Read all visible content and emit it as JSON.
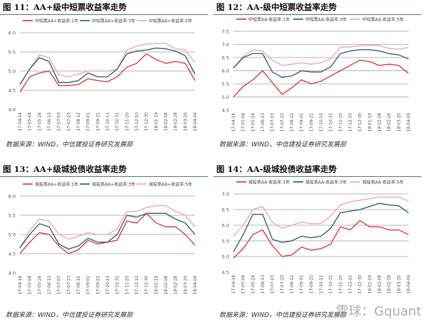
{
  "colors": {
    "y1": "#d9373a",
    "y3": "#2f5f6e",
    "y5": "#f1a5ad",
    "grid": "#a0a0a0",
    "rule": "#4a7b8c"
  },
  "source_text": "数据来源：WIND，中信建投证券研究发展部",
  "watermark": "雪球：Gquant",
  "chart_data": [
    {
      "type": "line",
      "title": "图 11：AA+级中短票收益率走势",
      "ylim": [
        4.0,
        6.0
      ],
      "yticks": [
        "4.0",
        "4.5",
        "5.0",
        "5.5",
        "6.0"
      ],
      "grid": true,
      "legend": "top",
      "x": [
        "17-04-14",
        "17-05-04",
        "17-05-24",
        "17-06-13",
        "17-07-03",
        "17-07-23",
        "17-08-12",
        "17-09-01",
        "17-09-21",
        "17-10-11",
        "17-10-31",
        "17-11-20",
        "17-12-10",
        "17-12-30",
        "18-01-19",
        "18-02-08",
        "18-02-28",
        "18-03-20",
        "18-04-09"
      ],
      "series": [
        {
          "name": "中短票AA+收益率:1年",
          "values": [
            4.45,
            4.85,
            4.95,
            5.0,
            4.62,
            4.62,
            4.65,
            4.8,
            4.75,
            4.72,
            4.85,
            5.1,
            5.2,
            5.45,
            5.3,
            5.2,
            5.25,
            5.2,
            4.75
          ]
        },
        {
          "name": "中短票AA+收益率:3年",
          "values": [
            4.65,
            5.05,
            5.35,
            5.25,
            4.7,
            4.7,
            4.75,
            4.95,
            4.85,
            4.85,
            5.05,
            5.45,
            5.52,
            5.55,
            5.6,
            5.58,
            5.52,
            5.4,
            4.92
          ]
        },
        {
          "name": "中短票AA+收益率:5年",
          "values": [
            4.65,
            5.05,
            5.42,
            5.35,
            4.9,
            4.85,
            4.92,
            5.0,
            5.0,
            5.0,
            5.05,
            5.55,
            5.65,
            5.7,
            5.72,
            5.72,
            5.58,
            5.55,
            5.22
          ]
        }
      ]
    },
    {
      "type": "line",
      "title": "图 12：AA-级中短票收益率走势",
      "ylim": [
        4.5,
        7.5
      ],
      "yticks": [
        "4.5",
        "5.0",
        "5.5",
        "6.0",
        "6.5",
        "7.0",
        "7.5"
      ],
      "grid": true,
      "legend": "top",
      "x": [
        "17-04-14",
        "17-05-04",
        "17-05-24",
        "17-06-13",
        "17-07-03",
        "17-07-23",
        "17-08-12",
        "17-09-01",
        "17-09-21",
        "17-10-11",
        "17-10-31",
        "17-11-20",
        "17-12-10",
        "17-12-30",
        "18-01-19",
        "18-02-08",
        "18-02-28",
        "18-03-20",
        "18-04-09"
      ],
      "series": [
        {
          "name": "中短票AA-收益率:1年",
          "values": [
            5.0,
            5.4,
            5.65,
            6.0,
            5.55,
            5.1,
            5.35,
            5.65,
            5.5,
            5.6,
            5.8,
            6.0,
            6.2,
            6.4,
            6.35,
            6.2,
            6.25,
            6.2,
            5.9
          ]
        },
        {
          "name": "中短票AA-收益率:3年",
          "values": [
            6.1,
            6.5,
            6.65,
            6.65,
            5.95,
            5.75,
            5.8,
            6.0,
            5.95,
            5.95,
            6.15,
            6.65,
            6.75,
            6.8,
            6.8,
            6.75,
            6.65,
            6.6,
            6.45
          ]
        },
        {
          "name": "中短票AA-收益率:5年",
          "values": [
            6.1,
            6.55,
            6.8,
            6.75,
            6.4,
            6.2,
            6.25,
            6.3,
            6.25,
            6.3,
            6.45,
            6.9,
            6.9,
            6.95,
            6.97,
            6.95,
            6.85,
            6.82,
            6.88
          ]
        }
      ]
    },
    {
      "type": "line",
      "title": "图 13：AA+级城投债收益率走势",
      "ylim": [
        4.0,
        6.0
      ],
      "yticks": [
        "4.0",
        "4.5",
        "5.0",
        "5.5",
        "6.0"
      ],
      "grid": true,
      "legend": "top",
      "x": [
        "17-04-14",
        "17-05-04",
        "17-05-24",
        "17-06-13",
        "17-07-03",
        "17-07-23",
        "17-08-12",
        "17-09-01",
        "17-09-21",
        "17-10-11",
        "17-10-31",
        "17-11-20",
        "17-12-10",
        "17-12-30",
        "18-01-19",
        "18-02-08",
        "18-02-28",
        "18-03-20",
        "18-04-09"
      ],
      "series": [
        {
          "name": "城投债AA+收益率:1年",
          "values": [
            4.5,
            4.8,
            5.05,
            5.0,
            4.7,
            4.5,
            4.6,
            4.85,
            4.75,
            4.8,
            4.85,
            5.35,
            5.3,
            5.55,
            5.3,
            5.2,
            5.2,
            5.0,
            4.72
          ]
        },
        {
          "name": "城投债AA+收益率:3年",
          "values": [
            4.65,
            5.0,
            5.28,
            5.2,
            4.75,
            4.62,
            4.7,
            4.9,
            4.8,
            4.8,
            5.0,
            5.5,
            5.45,
            5.55,
            5.55,
            5.55,
            5.4,
            5.3,
            5.0
          ]
        },
        {
          "name": "城投债AA+收益率:5年",
          "values": [
            4.65,
            5.1,
            5.4,
            5.35,
            5.0,
            4.88,
            4.95,
            5.05,
            5.0,
            5.0,
            5.15,
            5.6,
            5.6,
            5.7,
            5.75,
            5.75,
            5.6,
            5.5,
            5.2
          ]
        }
      ]
    },
    {
      "type": "line",
      "title": "图 14：AA-级城投债收益率走势",
      "ylim": [
        4.5,
        7.0
      ],
      "yticks": [
        "4.5",
        "5.0",
        "5.5",
        "6.0",
        "6.5",
        "7.0"
      ],
      "grid": true,
      "legend": "top",
      "x": [
        "17-04-14",
        "17-05-04",
        "17-05-24",
        "17-06-13",
        "17-07-03",
        "17-07-23",
        "17-08-12",
        "17-09-01",
        "17-09-21",
        "17-10-11",
        "17-10-31",
        "17-11-20",
        "17-12-10",
        "17-12-30",
        "18-01-19",
        "18-02-08",
        "18-02-28",
        "18-03-20",
        "18-04-09"
      ],
      "series": [
        {
          "name": "城投债AA-收益率:1年",
          "values": [
            4.95,
            5.25,
            5.7,
            5.85,
            5.35,
            5.0,
            5.05,
            5.3,
            5.2,
            5.25,
            5.4,
            5.95,
            5.85,
            6.15,
            5.95,
            5.95,
            5.85,
            5.85,
            5.7
          ]
        },
        {
          "name": "城投债AA-收益率:3年",
          "values": [
            5.15,
            5.7,
            6.35,
            6.35,
            5.55,
            5.45,
            5.5,
            5.65,
            5.6,
            5.65,
            5.9,
            6.4,
            6.45,
            6.5,
            6.6,
            6.7,
            6.65,
            6.62,
            6.4
          ]
        },
        {
          "name": "城投债AA-收益率:5年",
          "values": [
            5.65,
            6.0,
            6.5,
            6.6,
            6.1,
            5.9,
            6.0,
            6.1,
            6.05,
            6.05,
            6.3,
            6.65,
            6.75,
            6.8,
            6.85,
            6.9,
            6.9,
            6.9,
            6.78
          ]
        }
      ]
    }
  ]
}
